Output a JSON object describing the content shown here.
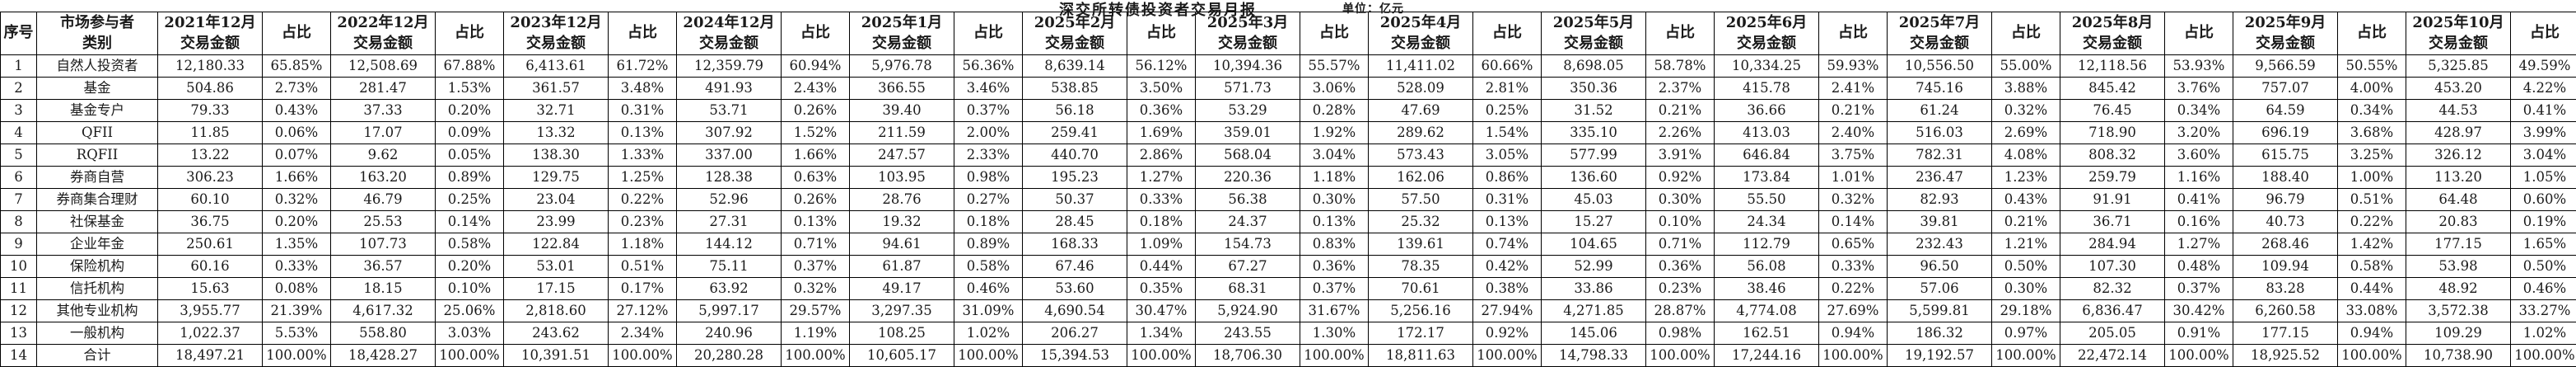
{
  "title": "深交所转债投资者交易月报",
  "unit_label": "单位：亿元",
  "table": {
    "header": {
      "seq": "序号",
      "category_line1": "市场参与者",
      "category_line2": "类别",
      "amount_label": "交易金额",
      "ratio_label": "占比"
    },
    "periods": [
      "2021年12月",
      "2022年12月",
      "2023年12月",
      "2024年12月",
      "2025年1月",
      "2025年2月",
      "2025年3月",
      "2025年4月",
      "2025年5月",
      "2025年6月",
      "2025年7月",
      "2025年8月",
      "2025年9月",
      "2025年10月"
    ],
    "rows": [
      {
        "seq": "1",
        "category": "自然人投资者",
        "cells": [
          [
            "12,180.33",
            "65.85%"
          ],
          [
            "12,508.69",
            "67.88%"
          ],
          [
            "6,413.61",
            "61.72%"
          ],
          [
            "12,359.79",
            "60.94%"
          ],
          [
            "5,976.78",
            "56.36%"
          ],
          [
            "8,639.14",
            "56.12%"
          ],
          [
            "10,394.36",
            "55.57%"
          ],
          [
            "11,411.02",
            "60.66%"
          ],
          [
            "8,698.05",
            "58.78%"
          ],
          [
            "10,334.25",
            "59.93%"
          ],
          [
            "10,556.50",
            "55.00%"
          ],
          [
            "12,118.56",
            "53.93%"
          ],
          [
            "9,566.59",
            "50.55%"
          ],
          [
            "5,325.85",
            "49.59%"
          ]
        ]
      },
      {
        "seq": "2",
        "category": "基金",
        "cells": [
          [
            "504.86",
            "2.73%"
          ],
          [
            "281.47",
            "1.53%"
          ],
          [
            "361.57",
            "3.48%"
          ],
          [
            "491.93",
            "2.43%"
          ],
          [
            "366.55",
            "3.46%"
          ],
          [
            "538.85",
            "3.50%"
          ],
          [
            "571.73",
            "3.06%"
          ],
          [
            "528.09",
            "2.81%"
          ],
          [
            "350.36",
            "2.37%"
          ],
          [
            "415.78",
            "2.41%"
          ],
          [
            "745.16",
            "3.88%"
          ],
          [
            "845.42",
            "3.76%"
          ],
          [
            "757.07",
            "4.00%"
          ],
          [
            "453.20",
            "4.22%"
          ]
        ]
      },
      {
        "seq": "3",
        "category": "基金专户",
        "cells": [
          [
            "79.33",
            "0.43%"
          ],
          [
            "37.33",
            "0.20%"
          ],
          [
            "32.71",
            "0.31%"
          ],
          [
            "53.71",
            "0.26%"
          ],
          [
            "39.40",
            "0.37%"
          ],
          [
            "56.18",
            "0.36%"
          ],
          [
            "53.29",
            "0.28%"
          ],
          [
            "47.69",
            "0.25%"
          ],
          [
            "31.52",
            "0.21%"
          ],
          [
            "36.66",
            "0.21%"
          ],
          [
            "61.24",
            "0.32%"
          ],
          [
            "76.45",
            "0.34%"
          ],
          [
            "64.59",
            "0.34%"
          ],
          [
            "44.53",
            "0.41%"
          ]
        ]
      },
      {
        "seq": "4",
        "category": "QFII",
        "cells": [
          [
            "11.85",
            "0.06%"
          ],
          [
            "17.07",
            "0.09%"
          ],
          [
            "13.32",
            "0.13%"
          ],
          [
            "307.92",
            "1.52%"
          ],
          [
            "211.59",
            "2.00%"
          ],
          [
            "259.41",
            "1.69%"
          ],
          [
            "359.01",
            "1.92%"
          ],
          [
            "289.62",
            "1.54%"
          ],
          [
            "335.10",
            "2.26%"
          ],
          [
            "413.03",
            "2.40%"
          ],
          [
            "516.03",
            "2.69%"
          ],
          [
            "718.90",
            "3.20%"
          ],
          [
            "696.19",
            "3.68%"
          ],
          [
            "428.97",
            "3.99%"
          ]
        ]
      },
      {
        "seq": "5",
        "category": "RQFII",
        "cells": [
          [
            "13.22",
            "0.07%"
          ],
          [
            "9.62",
            "0.05%"
          ],
          [
            "138.30",
            "1.33%"
          ],
          [
            "337.00",
            "1.66%"
          ],
          [
            "247.57",
            "2.33%"
          ],
          [
            "440.70",
            "2.86%"
          ],
          [
            "568.04",
            "3.04%"
          ],
          [
            "573.43",
            "3.05%"
          ],
          [
            "577.99",
            "3.91%"
          ],
          [
            "646.84",
            "3.75%"
          ],
          [
            "782.31",
            "4.08%"
          ],
          [
            "808.32",
            "3.60%"
          ],
          [
            "615.75",
            "3.25%"
          ],
          [
            "326.12",
            "3.04%"
          ]
        ]
      },
      {
        "seq": "6",
        "category": "券商自营",
        "cells": [
          [
            "306.23",
            "1.66%"
          ],
          [
            "163.20",
            "0.89%"
          ],
          [
            "129.75",
            "1.25%"
          ],
          [
            "128.38",
            "0.63%"
          ],
          [
            "103.95",
            "0.98%"
          ],
          [
            "195.23",
            "1.27%"
          ],
          [
            "220.36",
            "1.18%"
          ],
          [
            "162.06",
            "0.86%"
          ],
          [
            "136.60",
            "0.92%"
          ],
          [
            "173.84",
            "1.01%"
          ],
          [
            "236.47",
            "1.23%"
          ],
          [
            "259.79",
            "1.16%"
          ],
          [
            "188.40",
            "1.00%"
          ],
          [
            "113.20",
            "1.05%"
          ]
        ]
      },
      {
        "seq": "7",
        "category": "券商集合理财",
        "cells": [
          [
            "60.10",
            "0.32%"
          ],
          [
            "46.79",
            "0.25%"
          ],
          [
            "23.04",
            "0.22%"
          ],
          [
            "52.96",
            "0.26%"
          ],
          [
            "28.76",
            "0.27%"
          ],
          [
            "50.37",
            "0.33%"
          ],
          [
            "56.38",
            "0.30%"
          ],
          [
            "57.50",
            "0.31%"
          ],
          [
            "45.03",
            "0.30%"
          ],
          [
            "55.50",
            "0.32%"
          ],
          [
            "82.93",
            "0.43%"
          ],
          [
            "91.91",
            "0.41%"
          ],
          [
            "96.79",
            "0.51%"
          ],
          [
            "64.48",
            "0.60%"
          ]
        ]
      },
      {
        "seq": "8",
        "category": "社保基金",
        "cells": [
          [
            "36.75",
            "0.20%"
          ],
          [
            "25.53",
            "0.14%"
          ],
          [
            "23.99",
            "0.23%"
          ],
          [
            "27.31",
            "0.13%"
          ],
          [
            "19.32",
            "0.18%"
          ],
          [
            "28.45",
            "0.18%"
          ],
          [
            "24.37",
            "0.13%"
          ],
          [
            "25.32",
            "0.13%"
          ],
          [
            "15.27",
            "0.10%"
          ],
          [
            "24.34",
            "0.14%"
          ],
          [
            "39.81",
            "0.21%"
          ],
          [
            "36.71",
            "0.16%"
          ],
          [
            "40.73",
            "0.22%"
          ],
          [
            "20.83",
            "0.19%"
          ]
        ]
      },
      {
        "seq": "9",
        "category": "企业年金",
        "cells": [
          [
            "250.61",
            "1.35%"
          ],
          [
            "107.73",
            "0.58%"
          ],
          [
            "122.84",
            "1.18%"
          ],
          [
            "144.12",
            "0.71%"
          ],
          [
            "94.61",
            "0.89%"
          ],
          [
            "168.33",
            "1.09%"
          ],
          [
            "154.73",
            "0.83%"
          ],
          [
            "139.61",
            "0.74%"
          ],
          [
            "104.65",
            "0.71%"
          ],
          [
            "112.79",
            "0.65%"
          ],
          [
            "232.43",
            "1.21%"
          ],
          [
            "284.94",
            "1.27%"
          ],
          [
            "268.46",
            "1.42%"
          ],
          [
            "177.15",
            "1.65%"
          ]
        ]
      },
      {
        "seq": "10",
        "category": "保险机构",
        "cells": [
          [
            "60.16",
            "0.33%"
          ],
          [
            "36.57",
            "0.20%"
          ],
          [
            "53.01",
            "0.51%"
          ],
          [
            "75.11",
            "0.37%"
          ],
          [
            "61.87",
            "0.58%"
          ],
          [
            "67.46",
            "0.44%"
          ],
          [
            "67.27",
            "0.36%"
          ],
          [
            "78.35",
            "0.42%"
          ],
          [
            "52.99",
            "0.36%"
          ],
          [
            "56.08",
            "0.33%"
          ],
          [
            "96.50",
            "0.50%"
          ],
          [
            "107.30",
            "0.48%"
          ],
          [
            "109.94",
            "0.58%"
          ],
          [
            "53.98",
            "0.50%"
          ]
        ]
      },
      {
        "seq": "11",
        "category": "信托机构",
        "cells": [
          [
            "15.63",
            "0.08%"
          ],
          [
            "18.15",
            "0.10%"
          ],
          [
            "17.15",
            "0.17%"
          ],
          [
            "63.92",
            "0.32%"
          ],
          [
            "49.17",
            "0.46%"
          ],
          [
            "53.60",
            "0.35%"
          ],
          [
            "68.31",
            "0.37%"
          ],
          [
            "70.61",
            "0.38%"
          ],
          [
            "33.86",
            "0.23%"
          ],
          [
            "38.46",
            "0.22%"
          ],
          [
            "57.06",
            "0.30%"
          ],
          [
            "82.32",
            "0.37%"
          ],
          [
            "83.28",
            "0.44%"
          ],
          [
            "48.92",
            "0.46%"
          ]
        ]
      },
      {
        "seq": "12",
        "category": "其他专业机构",
        "cells": [
          [
            "3,955.77",
            "21.39%"
          ],
          [
            "4,617.32",
            "25.06%"
          ],
          [
            "2,818.60",
            "27.12%"
          ],
          [
            "5,997.17",
            "29.57%"
          ],
          [
            "3,297.35",
            "31.09%"
          ],
          [
            "4,690.54",
            "30.47%"
          ],
          [
            "5,924.90",
            "31.67%"
          ],
          [
            "5,256.16",
            "27.94%"
          ],
          [
            "4,271.85",
            "28.87%"
          ],
          [
            "4,774.08",
            "27.69%"
          ],
          [
            "5,599.81",
            "29.18%"
          ],
          [
            "6,836.47",
            "30.42%"
          ],
          [
            "6,260.58",
            "33.08%"
          ],
          [
            "3,572.38",
            "33.27%"
          ]
        ]
      },
      {
        "seq": "13",
        "category": "一般机构",
        "cells": [
          [
            "1,022.37",
            "5.53%"
          ],
          [
            "558.80",
            "3.03%"
          ],
          [
            "243.62",
            "2.34%"
          ],
          [
            "240.96",
            "1.19%"
          ],
          [
            "108.25",
            "1.02%"
          ],
          [
            "206.27",
            "1.34%"
          ],
          [
            "243.55",
            "1.30%"
          ],
          [
            "172.17",
            "0.92%"
          ],
          [
            "145.06",
            "0.98%"
          ],
          [
            "162.51",
            "0.94%"
          ],
          [
            "186.32",
            "0.97%"
          ],
          [
            "205.05",
            "0.91%"
          ],
          [
            "177.15",
            "0.94%"
          ],
          [
            "109.29",
            "1.02%"
          ]
        ]
      },
      {
        "seq": "14",
        "category": "合计",
        "cells": [
          [
            "18,497.21",
            "100.00%"
          ],
          [
            "18,428.27",
            "100.00%"
          ],
          [
            "10,391.51",
            "100.00%"
          ],
          [
            "20,280.28",
            "100.00%"
          ],
          [
            "10,605.17",
            "100.00%"
          ],
          [
            "15,394.53",
            "100.00%"
          ],
          [
            "18,706.30",
            "100.00%"
          ],
          [
            "18,811.63",
            "100.00%"
          ],
          [
            "14,798.33",
            "100.00%"
          ],
          [
            "17,244.16",
            "100.00%"
          ],
          [
            "19,192.57",
            "100.00%"
          ],
          [
            "22,472.14",
            "100.00%"
          ],
          [
            "18,925.52",
            "100.00%"
          ],
          [
            "10,738.90",
            "100.00%"
          ]
        ]
      }
    ]
  }
}
